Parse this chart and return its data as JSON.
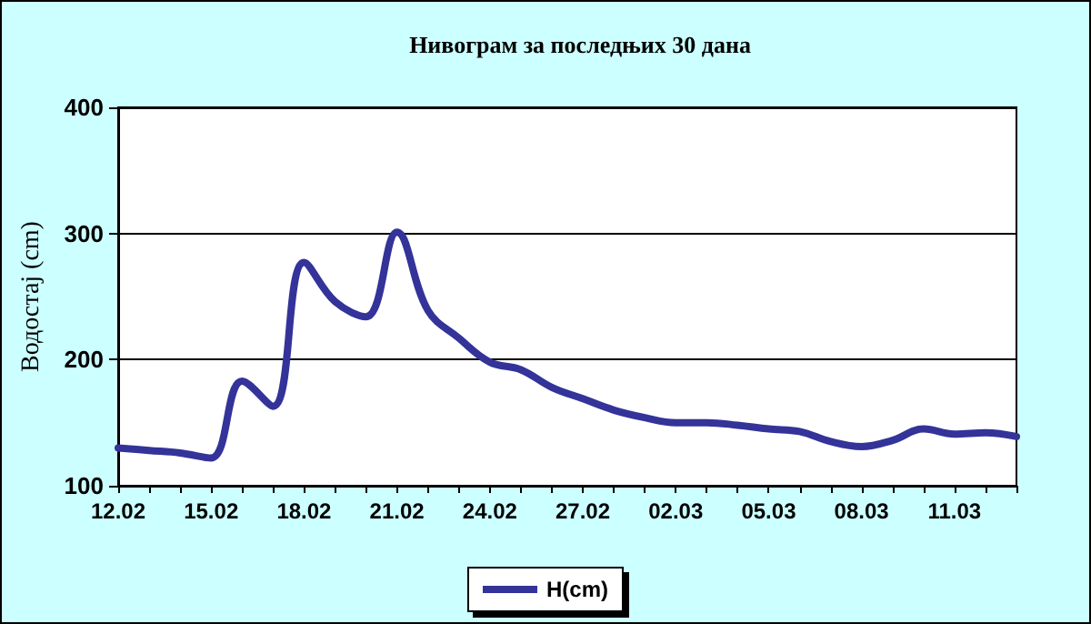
{
  "chart_data": {
    "type": "line",
    "title": "Нивограм за последњих 30 дана",
    "ylabel": "Водостај (cm)",
    "categories": [
      "12.02",
      null,
      null,
      "15.02",
      null,
      null,
      "18.02",
      null,
      null,
      "21.02",
      null,
      null,
      "24.02",
      null,
      null,
      "27.02",
      null,
      null,
      "02.03",
      null,
      null,
      "05.03",
      null,
      null,
      "08.03",
      null,
      null,
      "11.03",
      null,
      null
    ],
    "series": [
      {
        "name": "H(cm)",
        "color": "#333399",
        "values": [
          130,
          128,
          126,
          122,
          183,
          163,
          277,
          246,
          234,
          301,
          239,
          217,
          198,
          192,
          178,
          169,
          160,
          154,
          150,
          150,
          148,
          145,
          143,
          135,
          131,
          136,
          145,
          141,
          142,
          139
        ]
      }
    ],
    "ylim": [
      100,
      400
    ],
    "yticks": [
      100,
      200,
      300,
      400
    ],
    "grid": "y",
    "legend": "bottom",
    "marker": "none",
    "line_style": "solid"
  }
}
